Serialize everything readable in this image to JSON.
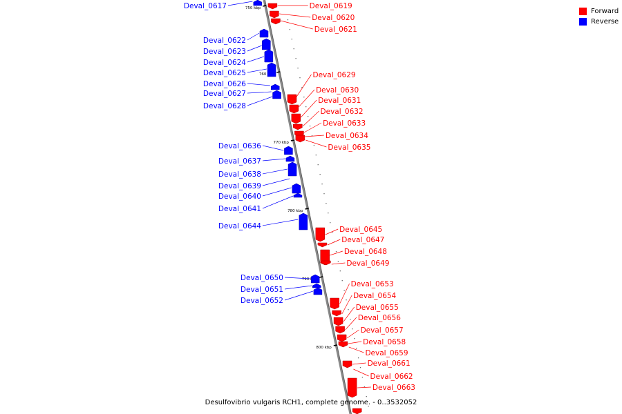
{
  "legend": {
    "forward_label": "Forward",
    "reverse_label": "Reverse"
  },
  "colors": {
    "forward": "#ff0000",
    "reverse": "#0000ff",
    "backbone": "#888888"
  },
  "caption": "Desulfovibrio vulgaris RCH1, complete genome. - 0..3532052",
  "scale_labels": [
    "750 kbp",
    "760 kbp",
    "770 kbp",
    "780 kbp",
    "790 kbp",
    "800 kbp"
  ],
  "reverse_genes": [
    "Deval_0617",
    "Deval_0622",
    "Deval_0623",
    "Deval_0624",
    "Deval_0625",
    "Deval_0626",
    "Deval_0627",
    "Deval_0628",
    "Deval_0636",
    "Deval_0637",
    "Deval_0638",
    "Deval_0639",
    "Deval_0640",
    "Deval_0641",
    "Deval_0644",
    "Deval_0650",
    "Deval_0651",
    "Deval_0652"
  ],
  "forward_genes": [
    "Deval_0619",
    "Deval_0620",
    "Deval_0621",
    "Deval_0629",
    "Deval_0630",
    "Deval_0631",
    "Deval_0632",
    "Deval_0633",
    "Deval_0634",
    "Deval_0635",
    "Deval_0645",
    "Deval_0647",
    "Deval_0648",
    "Deval_0649",
    "Deval_0653",
    "Deval_0654",
    "Deval_0655",
    "Deval_0656",
    "Deval_0657",
    "Deval_0658",
    "Deval_0659",
    "Deval_0661",
    "Deval_0662",
    "Deval_0663"
  ]
}
